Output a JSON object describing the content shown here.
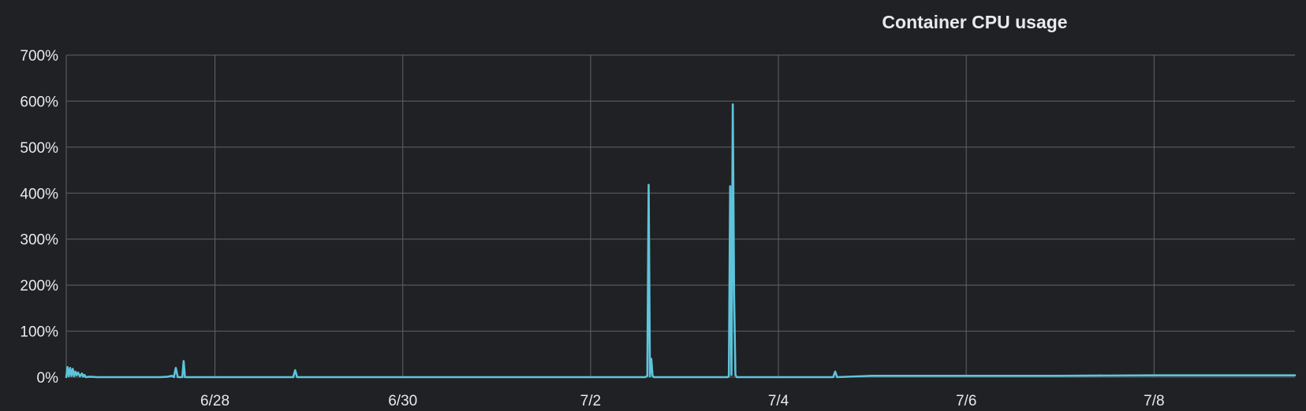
{
  "chart_data": {
    "type": "line",
    "title": "Container CPU usage",
    "xlabel": "",
    "ylabel": "",
    "x_ticks": [
      "6/28",
      "6/30",
      "7/2",
      "7/4",
      "7/6",
      "7/8"
    ],
    "y_ticks": [
      "0%",
      "100%",
      "200%",
      "300%",
      "400%",
      "500%",
      "600%",
      "700%"
    ],
    "ylim": [
      0,
      700
    ],
    "xlim": [
      "6/26 10:00",
      "7/9 12:00"
    ],
    "grid": true,
    "legend": "none",
    "colors": {
      "background": "#202124",
      "series": "#5ec4dc",
      "grid": "#5f6368",
      "text": "#e8eaed"
    },
    "series": [
      {
        "x": [
          "6/26 10:00",
          "6/26 10:20",
          "6/26 10:40",
          "6/26 11:00",
          "6/26 11:20",
          "6/26 11:40",
          "6/26 12:00",
          "6/26 12:20",
          "6/26 12:40",
          "6/26 13:00",
          "6/26 13:30",
          "6/26 14:00",
          "6/26 14:20",
          "6/26 14:40",
          "6/26 15:00",
          "6/26 16:00",
          "6/26 18:00",
          "6/27 00:00",
          "6/27 06:00",
          "6/27 10:00",
          "6/27 12:00",
          "6/27 13:00",
          "6/27 13:30",
          "6/27 14:00",
          "6/27 14:30",
          "6/27 15:00",
          "6/27 15:40",
          "6/27 16:00",
          "6/27 16:20",
          "6/27 17:00",
          "6/28 00:00",
          "6/28 12:00",
          "6/28 18:00",
          "6/28 20:00",
          "6/28 20:30",
          "6/28 21:00",
          "6/29 00:00",
          "6/29 12:00",
          "6/30 00:00",
          "6/30 12:00",
          "7/1 00:00",
          "7/1 12:00",
          "7/2 00:00",
          "7/2 12:00",
          "7/2 14:00",
          "7/2 14:30",
          "7/2 14:50",
          "7/2 15:10",
          "7/2 15:30",
          "7/2 15:50",
          "7/2 16:10",
          "7/2 16:30",
          "7/2 17:00",
          "7/2 18:00",
          "7/3 00:00",
          "7/3 08:00",
          "7/3 10:00",
          "7/3 11:00",
          "7/3 11:20",
          "7/3 11:40",
          "7/3 12:00",
          "7/3 12:20",
          "7/3 12:40",
          "7/3 13:00",
          "7/3 13:20",
          "7/3 14:00",
          "7/3 18:00",
          "7/4 00:00",
          "7/4 12:00",
          "7/4 14:00",
          "7/4 14:30",
          "7/4 15:00",
          "7/5 00:00",
          "7/6 00:00",
          "7/7 00:00",
          "7/8 00:00",
          "7/9 00:00",
          "7/9 12:00"
        ],
        "y": [
          0,
          22,
          2,
          20,
          3,
          18,
          2,
          12,
          4,
          10,
          2,
          8,
          1,
          5,
          0,
          1,
          0,
          0,
          0,
          0,
          1,
          3,
          0,
          20,
          0,
          0,
          0,
          35,
          0,
          0,
          0,
          0,
          0,
          0,
          15,
          0,
          0,
          0,
          0,
          0,
          0,
          0,
          0,
          0,
          0,
          3,
          418,
          2,
          40,
          3,
          0,
          0,
          0,
          0,
          0,
          0,
          0,
          0,
          2,
          415,
          5,
          593,
          180,
          5,
          0,
          0,
          0,
          0,
          0,
          0,
          12,
          0,
          3,
          3,
          3,
          4,
          4,
          4
        ]
      }
    ]
  }
}
